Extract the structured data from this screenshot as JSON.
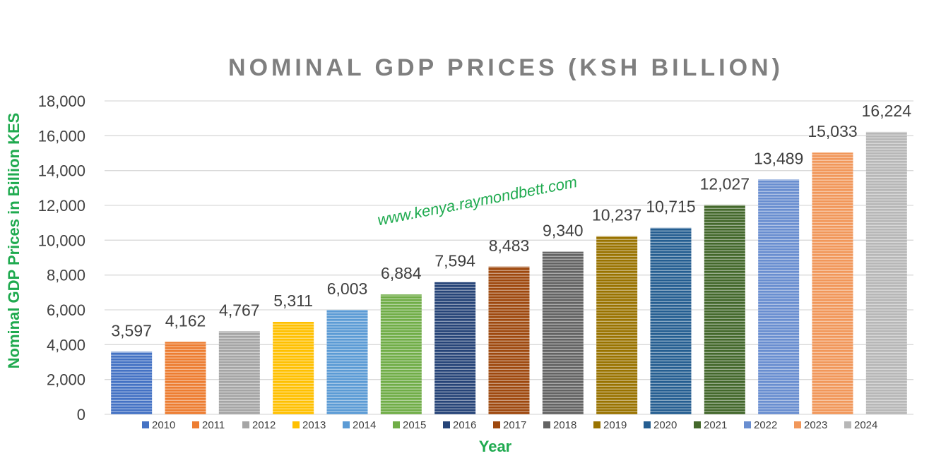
{
  "chart_data": {
    "type": "bar",
    "title": "NOMINAL GDP PRICES (KSH BILLION)",
    "xlabel": "Year",
    "ylabel": "Nominal GDP Prices in Billion KES",
    "ylim": [
      0,
      18000
    ],
    "yticks": [
      "0",
      "2,000",
      "4,000",
      "6,000",
      "8,000",
      "10,000",
      "12,000",
      "14,000",
      "16,000",
      "18,000"
    ],
    "ytick_values": [
      0,
      2000,
      4000,
      6000,
      8000,
      10000,
      12000,
      14000,
      16000,
      18000
    ],
    "grid": true,
    "legend": "bottom",
    "categories": [
      "2010",
      "2011",
      "2012",
      "2013",
      "2014",
      "2015",
      "2016",
      "2017",
      "2018",
      "2019",
      "2020",
      "2021",
      "2022",
      "2023",
      "2024"
    ],
    "values": [
      3597,
      4162,
      4767,
      5311,
      6003,
      6884,
      7594,
      8483,
      9340,
      10237,
      10715,
      12027,
      13489,
      15033,
      16224
    ],
    "value_labels": [
      "3,597",
      "4,162",
      "4,767",
      "5,311",
      "6,003",
      "6,884",
      "7,594",
      "8,483",
      "9,340",
      "10,237",
      "10,715",
      "12,027",
      "13,489",
      "15,033",
      "16,224"
    ],
    "colors": [
      "#4472c4",
      "#ed7d31",
      "#a5a5a5",
      "#ffc000",
      "#5b9bd5",
      "#70ad47",
      "#264478",
      "#9e480e",
      "#636363",
      "#997300",
      "#255e91",
      "#43682b",
      "#698ed0",
      "#f1975a",
      "#b7b7b7"
    ],
    "watermark": "www.kenya.raymondbett.com"
  }
}
